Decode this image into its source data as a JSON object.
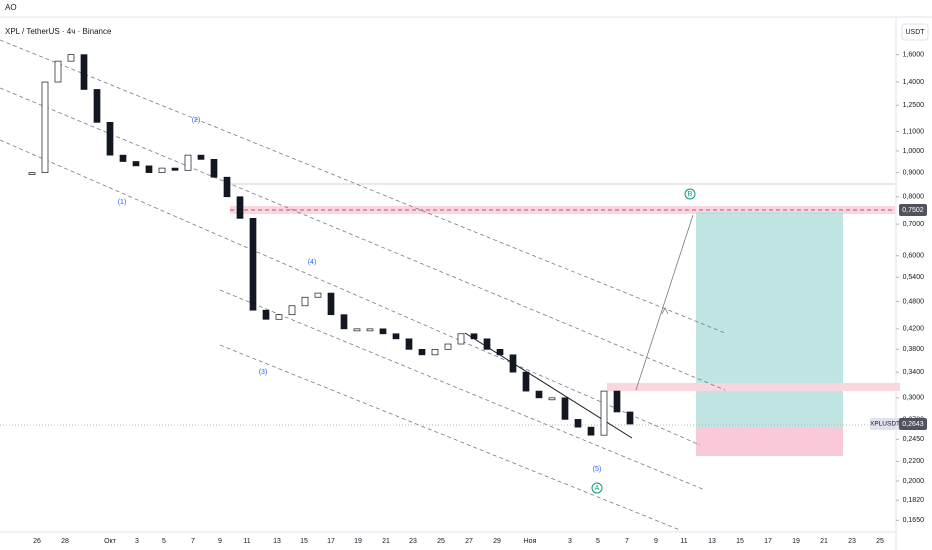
{
  "header": {
    "indicator": "AO",
    "symbol": "XPL / TetherUS · 4ч · Binance",
    "currency": "USDT"
  },
  "price_axis": {
    "log": true,
    "ticks": [
      {
        "value": 1.6,
        "label": "1,6000"
      },
      {
        "value": 1.4,
        "label": "1,4000"
      },
      {
        "value": 1.25,
        "label": "1,2500"
      },
      {
        "value": 1.1,
        "label": "1,1000"
      },
      {
        "value": 1.0,
        "label": "1,0000"
      },
      {
        "value": 0.9,
        "label": "0,9000"
      },
      {
        "value": 0.8,
        "label": "0,8000"
      },
      {
        "value": 0.7,
        "label": "0,7000"
      },
      {
        "value": 0.6,
        "label": "0,6000"
      },
      {
        "value": 0.54,
        "label": "0,5400"
      },
      {
        "value": 0.48,
        "label": "0,4800"
      },
      {
        "value": 0.42,
        "label": "0,4200"
      },
      {
        "value": 0.38,
        "label": "0,3800"
      },
      {
        "value": 0.34,
        "label": "0,3400"
      },
      {
        "value": 0.3,
        "label": "0,3000"
      },
      {
        "value": 0.27,
        "label": "0,2700"
      },
      {
        "value": 0.245,
        "label": "0,2450"
      },
      {
        "value": 0.22,
        "label": "0,2200"
      },
      {
        "value": 0.2,
        "label": "0,2000"
      },
      {
        "value": 0.182,
        "label": "0,1820"
      },
      {
        "value": 0.165,
        "label": "0,1650"
      }
    ]
  },
  "time_axis": {
    "labels": [
      "26",
      "28",
      "Окт",
      "3",
      "5",
      "7",
      "9",
      "11",
      "13",
      "15",
      "17",
      "19",
      "21",
      "23",
      "25",
      "27",
      "29",
      "Ноя",
      "3",
      "5",
      "7",
      "9",
      "11",
      "13",
      "15",
      "17",
      "19",
      "21",
      "23",
      "25"
    ]
  },
  "candles": {
    "up_color": "#ffffff",
    "down_color": "#131722",
    "closes": [
      0.9,
      1.4,
      1.55,
      1.6,
      1.35,
      1.15,
      0.98,
      0.95,
      0.93,
      0.9,
      0.92,
      0.91,
      0.98,
      0.96,
      0.88,
      0.8,
      0.72,
      0.46,
      0.44,
      0.45,
      0.47,
      0.49,
      0.5,
      0.45,
      0.42,
      0.42,
      0.42,
      0.41,
      0.4,
      0.38,
      0.37,
      0.38,
      0.39,
      0.41,
      0.4,
      0.38,
      0.37,
      0.34,
      0.31,
      0.3,
      0.3,
      0.27,
      0.26,
      0.25,
      0.31,
      0.28,
      0.264
    ]
  },
  "waves": [
    "(1)",
    "(2)",
    "(3)",
    "(4)",
    "(5)"
  ],
  "markers": [
    "A",
    "B"
  ],
  "tags": {
    "level": "0,7502",
    "symbol": "XPLUSDT",
    "last": "0,2643"
  }
}
